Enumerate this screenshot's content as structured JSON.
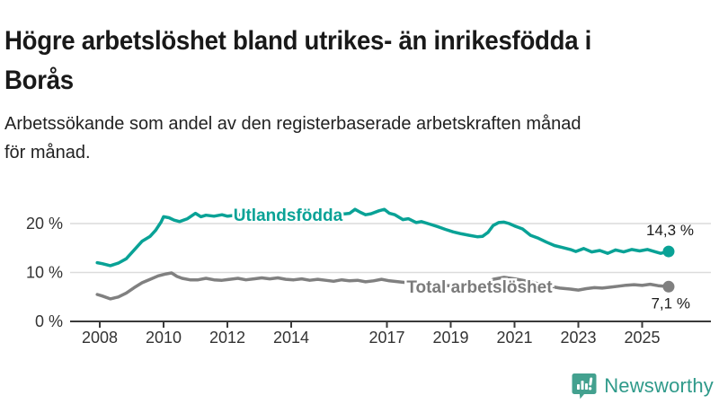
{
  "header": {
    "title_lines": [
      "Högre arbetslöshet bland utrikes- än inrikesfödda i",
      "Borås"
    ],
    "subtitle_lines": [
      "Arbetssökande som andel av den registerbaserade arbetskraften månad",
      "för månad."
    ]
  },
  "chart_data": {
    "type": "line",
    "title": "Högre arbetslöshet bland utrikes- än inrikesfödda i Borås",
    "subtitle": "Arbetssökande som andel av den registerbaserade arbetskraften månad för månad.",
    "xlabel": "",
    "ylabel": "",
    "unit": "%",
    "grid": "horizontal",
    "legend_position": "inline-labels",
    "xlim": [
      2007.8,
      2026.3
    ],
    "ylim": [
      0,
      24
    ],
    "grid_color": "#dcdcdc",
    "axis_color": "#3a3a3a",
    "tick_text_color": "#333333",
    "annotation_text_color": "#1a1a1a",
    "y_ticks": [
      {
        "value": 20,
        "label": "20 %"
      },
      {
        "value": 10,
        "label": "10 %"
      },
      {
        "value": 0,
        "label": "0 %"
      }
    ],
    "x_ticks": [
      {
        "value": 2008,
        "label": "2008"
      },
      {
        "value": 2010,
        "label": "2010"
      },
      {
        "value": 2012,
        "label": "2012"
      },
      {
        "value": 2014,
        "label": "2014"
      },
      {
        "value": 2017,
        "label": "2017"
      },
      {
        "value": 2019,
        "label": "2019"
      },
      {
        "value": 2021,
        "label": "2021"
      },
      {
        "value": 2023,
        "label": "2023"
      },
      {
        "value": 2025,
        "label": "2025"
      }
    ],
    "series": [
      {
        "name": "Utlandsfödda",
        "color": "#09a296",
        "end_label": "14,3 %",
        "end_value": 14.3,
        "label": {
          "text": "Utlandsfödda",
          "x": 2013.9,
          "y": 21.8
        },
        "points": [
          [
            2007.92,
            12.0
          ],
          [
            2008.08,
            11.8
          ],
          [
            2008.33,
            11.4
          ],
          [
            2008.58,
            11.9
          ],
          [
            2008.83,
            12.8
          ],
          [
            2009.08,
            14.6
          ],
          [
            2009.33,
            16.4
          ],
          [
            2009.58,
            17.4
          ],
          [
            2009.75,
            18.6
          ],
          [
            2009.92,
            20.3
          ],
          [
            2010.0,
            21.4
          ],
          [
            2010.17,
            21.2
          ],
          [
            2010.33,
            20.7
          ],
          [
            2010.5,
            20.4
          ],
          [
            2010.75,
            21.0
          ],
          [
            2011.0,
            22.1
          ],
          [
            2011.17,
            21.4
          ],
          [
            2011.33,
            21.7
          ],
          [
            2011.58,
            21.5
          ],
          [
            2011.83,
            21.8
          ],
          [
            2012.0,
            21.5
          ],
          [
            2012.25,
            21.7
          ],
          [
            2012.5,
            21.9
          ],
          [
            2012.75,
            21.6
          ],
          [
            2013.0,
            21.5
          ],
          [
            2013.25,
            21.8
          ],
          [
            2013.5,
            21.6
          ],
          [
            2013.75,
            21.9
          ],
          [
            2014.0,
            21.7
          ],
          [
            2014.25,
            22.2
          ],
          [
            2014.42,
            21.2
          ],
          [
            2014.58,
            21.6
          ],
          [
            2014.83,
            21.8
          ],
          [
            2015.08,
            21.5
          ],
          [
            2015.33,
            21.7
          ],
          [
            2015.58,
            21.9
          ],
          [
            2015.83,
            22.1
          ],
          [
            2016.0,
            22.9
          ],
          [
            2016.17,
            22.3
          ],
          [
            2016.33,
            21.8
          ],
          [
            2016.5,
            22.0
          ],
          [
            2016.75,
            22.6
          ],
          [
            2016.92,
            22.9
          ],
          [
            2017.08,
            22.1
          ],
          [
            2017.25,
            21.8
          ],
          [
            2017.5,
            20.8
          ],
          [
            2017.67,
            21.0
          ],
          [
            2017.92,
            20.2
          ],
          [
            2018.08,
            20.4
          ],
          [
            2018.33,
            19.9
          ],
          [
            2018.58,
            19.4
          ],
          [
            2018.83,
            18.8
          ],
          [
            2019.08,
            18.3
          ],
          [
            2019.33,
            17.9
          ],
          [
            2019.58,
            17.6
          ],
          [
            2019.83,
            17.3
          ],
          [
            2020.0,
            17.4
          ],
          [
            2020.17,
            18.2
          ],
          [
            2020.33,
            19.6
          ],
          [
            2020.5,
            20.2
          ],
          [
            2020.67,
            20.3
          ],
          [
            2020.83,
            20.0
          ],
          [
            2021.0,
            19.5
          ],
          [
            2021.25,
            18.9
          ],
          [
            2021.5,
            17.6
          ],
          [
            2021.75,
            17.0
          ],
          [
            2022.0,
            16.2
          ],
          [
            2022.25,
            15.5
          ],
          [
            2022.5,
            15.1
          ],
          [
            2022.75,
            14.7
          ],
          [
            2022.92,
            14.3
          ],
          [
            2023.17,
            14.9
          ],
          [
            2023.42,
            14.2
          ],
          [
            2023.67,
            14.5
          ],
          [
            2023.92,
            13.9
          ],
          [
            2024.17,
            14.6
          ],
          [
            2024.42,
            14.2
          ],
          [
            2024.67,
            14.7
          ],
          [
            2024.92,
            14.4
          ],
          [
            2025.17,
            14.7
          ],
          [
            2025.42,
            14.2
          ],
          [
            2025.58,
            13.9
          ],
          [
            2025.83,
            14.3
          ]
        ]
      },
      {
        "name": "Total arbetslöshet",
        "color": "#808080",
        "label_color": "#7b7b7b",
        "end_label": "7,1 %",
        "end_value": 7.1,
        "label": {
          "text": "Total arbetslöshet",
          "x": 2019.9,
          "y": 7.2
        },
        "points": [
          [
            2007.92,
            5.5
          ],
          [
            2008.08,
            5.2
          ],
          [
            2008.33,
            4.6
          ],
          [
            2008.58,
            5.0
          ],
          [
            2008.83,
            5.8
          ],
          [
            2009.08,
            6.9
          ],
          [
            2009.33,
            7.9
          ],
          [
            2009.58,
            8.6
          ],
          [
            2009.83,
            9.3
          ],
          [
            2010.08,
            9.7
          ],
          [
            2010.25,
            9.9
          ],
          [
            2010.42,
            9.2
          ],
          [
            2010.58,
            8.8
          ],
          [
            2010.83,
            8.5
          ],
          [
            2011.08,
            8.5
          ],
          [
            2011.33,
            8.8
          ],
          [
            2011.58,
            8.5
          ],
          [
            2011.83,
            8.4
          ],
          [
            2012.08,
            8.6
          ],
          [
            2012.33,
            8.8
          ],
          [
            2012.58,
            8.5
          ],
          [
            2012.83,
            8.7
          ],
          [
            2013.08,
            8.9
          ],
          [
            2013.33,
            8.7
          ],
          [
            2013.58,
            8.9
          ],
          [
            2013.83,
            8.6
          ],
          [
            2014.08,
            8.5
          ],
          [
            2014.33,
            8.7
          ],
          [
            2014.58,
            8.4
          ],
          [
            2014.83,
            8.6
          ],
          [
            2015.08,
            8.4
          ],
          [
            2015.33,
            8.2
          ],
          [
            2015.58,
            8.5
          ],
          [
            2015.83,
            8.3
          ],
          [
            2016.08,
            8.4
          ],
          [
            2016.33,
            8.1
          ],
          [
            2016.58,
            8.3
          ],
          [
            2016.83,
            8.6
          ],
          [
            2017.08,
            8.3
          ],
          [
            2017.5,
            8.0
          ],
          [
            2018.0,
            7.7
          ],
          [
            2018.5,
            7.4
          ],
          [
            2019.0,
            7.3
          ],
          [
            2019.5,
            7.1
          ],
          [
            2020.0,
            7.4
          ],
          [
            2020.33,
            8.6
          ],
          [
            2020.67,
            9.0
          ],
          [
            2021.0,
            8.7
          ],
          [
            2021.5,
            8.1
          ],
          [
            2022.0,
            7.3
          ],
          [
            2022.42,
            6.8
          ],
          [
            2022.75,
            6.6
          ],
          [
            2023.0,
            6.4
          ],
          [
            2023.25,
            6.7
          ],
          [
            2023.5,
            6.9
          ],
          [
            2023.75,
            6.8
          ],
          [
            2024.0,
            7.0
          ],
          [
            2024.25,
            7.2
          ],
          [
            2024.5,
            7.4
          ],
          [
            2024.75,
            7.5
          ],
          [
            2025.0,
            7.35
          ],
          [
            2025.25,
            7.6
          ],
          [
            2025.5,
            7.3
          ],
          [
            2025.83,
            7.1
          ]
        ]
      }
    ]
  },
  "footer": {
    "brand": "Newsworthy",
    "logo_icon": "newsworthy-speech-bubble-bar-chart-icon",
    "logo_color": "#43a18f",
    "brand_text_color": "#2f9a8a"
  }
}
